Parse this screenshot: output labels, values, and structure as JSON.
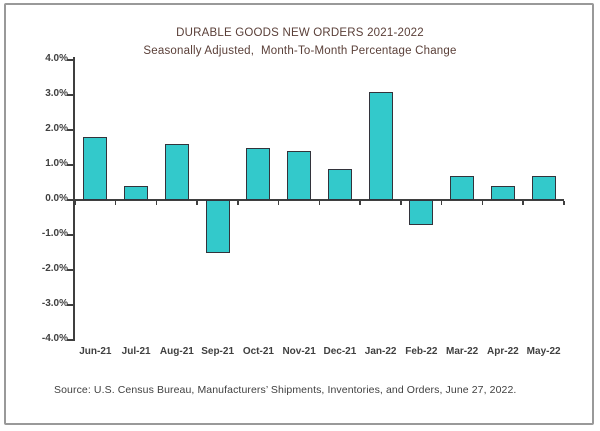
{
  "chart_data": {
    "type": "bar",
    "title": "DURABLE GOODS NEW ORDERS 2021-2022",
    "subtitle": "Seasonally Adjusted,  Month-To-Month Percentage Change",
    "categories": [
      "Jun-21",
      "Jul-21",
      "Aug-21",
      "Sep-21",
      "Oct-21",
      "Nov-21",
      "Dec-21",
      "Jan-22",
      "Feb-22",
      "Mar-22",
      "Apr-22",
      "May-22"
    ],
    "values": [
      1.8,
      0.4,
      1.6,
      -1.5,
      1.5,
      1.4,
      0.9,
      3.1,
      -0.7,
      0.7,
      0.4,
      0.7
    ],
    "xlabel": "",
    "ylabel": "",
    "ylim": [
      -4.0,
      4.0
    ],
    "ytick_step": 1.0,
    "ytick_suffix": "%",
    "grid": false,
    "legend": "none",
    "source_note": "Source: U.S. Census Bureau, Manufacturers’ Shipments, Inventories, and Orders, June 27, 2022."
  },
  "colors": {
    "bar_fill": "#33C9CB",
    "bar_border": "#33333B",
    "axis_line": "#3F3F3F",
    "axis_text": "#404040",
    "title_text": "#5A3F38",
    "source_text": "#404040",
    "figure_border": "#999999",
    "background": "#FFFFFF"
  }
}
